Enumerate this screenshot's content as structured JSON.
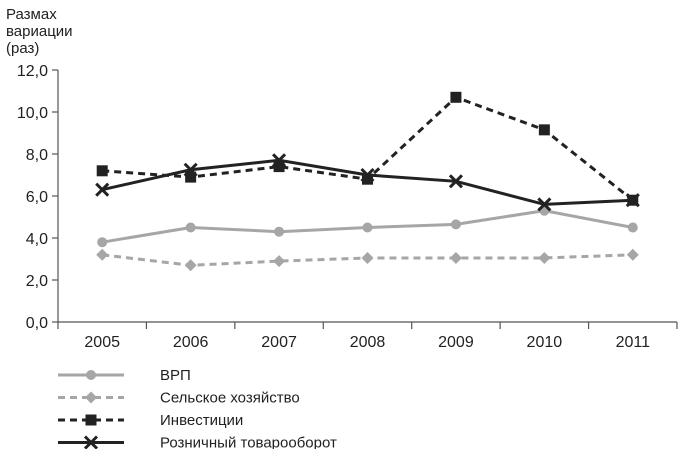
{
  "chart_data": {
    "type": "line",
    "ylabel": "Размах\nвариации\n(раз)",
    "xlabel": "",
    "ylim": [
      0,
      12
    ],
    "yticks": [
      "0,0",
      "2,0",
      "4,0",
      "6,0",
      "8,0",
      "10,0",
      "12,0"
    ],
    "categories": [
      "2005",
      "2006",
      "2007",
      "2008",
      "2009",
      "2010",
      "2011"
    ],
    "grid": false,
    "legend_position": "bottom-left",
    "series": [
      {
        "name": "ВРП",
        "values": [
          3.8,
          4.5,
          4.3,
          4.5,
          4.65,
          5.3,
          4.5
        ],
        "color": "#a6a6a6",
        "dashed": false,
        "marker": "circle"
      },
      {
        "name": "Сельское хозяйство",
        "values": [
          3.2,
          2.7,
          2.9,
          3.05,
          3.05,
          3.05,
          3.2
        ],
        "color": "#a6a6a6",
        "dashed": true,
        "marker": "diamond"
      },
      {
        "name": "Инвестиции",
        "values": [
          7.2,
          6.9,
          7.4,
          6.8,
          10.7,
          9.15,
          5.8
        ],
        "color": "#222222",
        "dashed": true,
        "marker": "square"
      },
      {
        "name": "Розничный товарооборот",
        "values": [
          6.3,
          7.25,
          7.7,
          7.0,
          6.7,
          5.6,
          5.8
        ],
        "color": "#222222",
        "dashed": false,
        "marker": "x"
      }
    ]
  }
}
